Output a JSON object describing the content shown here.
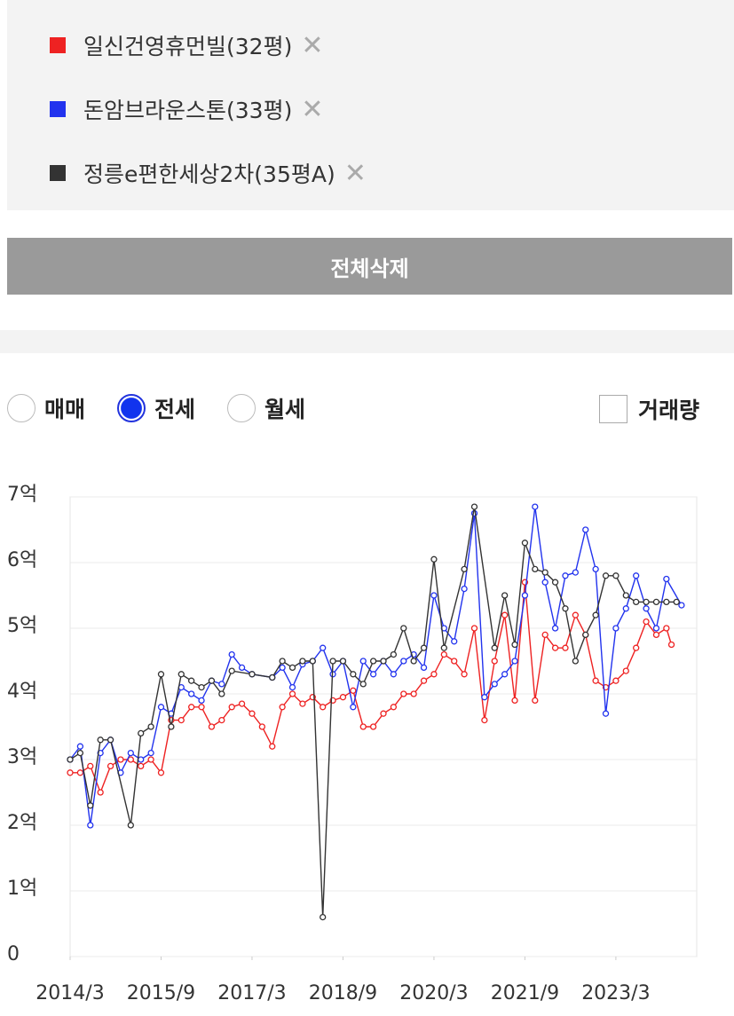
{
  "delete_all": "전체삭제",
  "trade_types": [
    "매매",
    "전세",
    "월세"
  ],
  "volume": "거래량",
  "chart_data": {
    "type": "line",
    "ylim": [
      0,
      7
    ],
    "yticks": [
      0,
      {
        "value": 1,
        "label": "1억"
      },
      {
        "value": 2,
        "label": "2억"
      },
      {
        "value": 3,
        "label": "3억"
      },
      {
        "value": 4,
        "label": "4억"
      },
      {
        "value": 5,
        "label": "5억"
      },
      {
        "value": 6,
        "label": "6억"
      },
      {
        "value": 7,
        "label": "7억"
      }
    ],
    "xlim": [
      "2014/3",
      "2024/7"
    ],
    "xticks": [
      "2014/3",
      "2015/9",
      "2017/3",
      "2018/9",
      "2020/3",
      "2021/9",
      "2023/3"
    ],
    "grid": true,
    "series": [
      {
        "name": "일신건영휴먼빌(32평)",
        "color": "#ee2222",
        "x": [
          "2014/3",
          "2014/5",
          "2014/7",
          "2014/9",
          "2014/11",
          "2015/1",
          "2015/3",
          "2015/5",
          "2015/7",
          "2015/9",
          "2015/11",
          "2016/1",
          "2016/3",
          "2016/5",
          "2016/7",
          "2016/9",
          "2016/11",
          "2017/1",
          "2017/3",
          "2017/5",
          "2017/7",
          "2017/9",
          "2017/11",
          "2018/1",
          "2018/3",
          "2018/5",
          "2018/7",
          "2018/9",
          "2018/11",
          "2019/1",
          "2019/3",
          "2019/5",
          "2019/7",
          "2019/9",
          "2019/11",
          "2020/1",
          "2020/3",
          "2020/5",
          "2020/7",
          "2020/9",
          "2020/11",
          "2021/1",
          "2021/3",
          "2021/5",
          "2021/7",
          "2021/9",
          "2021/11",
          "2022/1",
          "2022/3",
          "2022/5",
          "2022/7",
          "2022/9",
          "2022/11",
          "2023/1",
          "2023/3",
          "2023/5",
          "2023/7",
          "2023/9",
          "2023/11",
          "2024/1",
          "2024/2"
        ],
        "values": [
          2.8,
          2.8,
          2.9,
          2.5,
          2.9,
          3.0,
          3.0,
          2.9,
          3.0,
          2.8,
          3.6,
          3.6,
          3.8,
          3.8,
          3.5,
          3.6,
          3.8,
          3.85,
          3.7,
          3.5,
          3.2,
          3.8,
          4.0,
          3.85,
          3.95,
          3.8,
          3.9,
          3.95,
          4.05,
          3.5,
          3.5,
          3.7,
          3.8,
          4.0,
          4.0,
          4.2,
          4.3,
          4.6,
          4.5,
          4.3,
          5.0,
          3.6,
          4.5,
          5.2,
          3.9,
          5.7,
          3.9,
          4.9,
          4.7,
          4.7,
          5.2,
          4.9,
          4.2,
          4.1,
          4.2,
          4.35,
          4.7,
          5.1,
          4.9,
          5.0,
          4.75
        ]
      },
      {
        "name": "돈암브라운스톤(33평)",
        "color": "#2233ee",
        "x": [
          "2014/3",
          "2014/5",
          "2014/7",
          "2014/9",
          "2014/11",
          "2015/1",
          "2015/3",
          "2015/5",
          "2015/7",
          "2015/9",
          "2015/11",
          "2016/1",
          "2016/3",
          "2016/5",
          "2016/7",
          "2016/9",
          "2016/11",
          "2017/1",
          "2017/3",
          "2017/7",
          "2017/9",
          "2017/11",
          "2018/1",
          "2018/3",
          "2018/5",
          "2018/7",
          "2018/9",
          "2018/11",
          "2019/1",
          "2019/3",
          "2019/5",
          "2019/7",
          "2019/9",
          "2019/11",
          "2020/1",
          "2020/3",
          "2020/5",
          "2020/7",
          "2020/9",
          "2020/11",
          "2021/1",
          "2021/3",
          "2021/5",
          "2021/7",
          "2021/9",
          "2021/11",
          "2022/1",
          "2022/3",
          "2022/5",
          "2022/7",
          "2022/9",
          "2022/11",
          "2023/1",
          "2023/3",
          "2023/5",
          "2023/7",
          "2023/9",
          "2023/11",
          "2024/1",
          "2024/4"
        ],
        "values": [
          3.0,
          3.2,
          2.0,
          3.1,
          3.3,
          2.8,
          3.1,
          3.0,
          3.1,
          3.8,
          3.7,
          4.1,
          4.0,
          3.9,
          4.2,
          4.15,
          4.6,
          4.4,
          4.3,
          4.25,
          4.4,
          4.1,
          4.45,
          4.5,
          4.7,
          4.3,
          4.5,
          3.8,
          4.5,
          4.3,
          4.5,
          4.3,
          4.5,
          4.6,
          4.4,
          5.5,
          5.0,
          4.8,
          5.6,
          6.75,
          3.95,
          4.15,
          4.3,
          4.5,
          5.5,
          6.85,
          5.7,
          5.0,
          5.8,
          5.85,
          6.5,
          5.9,
          3.7,
          5.0,
          5.3,
          5.8,
          5.3,
          5.0,
          5.75,
          5.35
        ]
      },
      {
        "name": "정릉e편한세상2차(35평A)",
        "color": "#333333",
        "x": [
          "2014/3",
          "2014/5",
          "2014/7",
          "2014/9",
          "2014/11",
          "2015/3",
          "2015/5",
          "2015/7",
          "2015/9",
          "2015/11",
          "2016/1",
          "2016/3",
          "2016/5",
          "2016/7",
          "2016/9",
          "2016/11",
          "2017/3",
          "2017/7",
          "2017/9",
          "2017/11",
          "2018/1",
          "2018/3",
          "2018/5",
          "2018/7",
          "2018/9",
          "2018/11",
          "2019/1",
          "2019/3",
          "2019/5",
          "2019/7",
          "2019/9",
          "2019/11",
          "2020/1",
          "2020/3",
          "2020/5",
          "2020/9",
          "2020/11",
          "2021/3",
          "2021/5",
          "2021/7",
          "2021/9",
          "2021/11",
          "2022/1",
          "2022/3",
          "2022/5",
          "2022/7",
          "2022/9",
          "2022/11",
          "2023/1",
          "2023/3",
          "2023/5",
          "2023/7",
          "2023/9",
          "2023/11",
          "2024/1",
          "2024/3"
        ],
        "values": [
          3.0,
          3.1,
          2.3,
          3.3,
          3.3,
          2.0,
          3.4,
          3.5,
          4.3,
          3.5,
          4.3,
          4.2,
          4.1,
          4.2,
          4.0,
          4.35,
          4.3,
          4.25,
          4.5,
          4.4,
          4.5,
          4.5,
          0.6,
          4.5,
          4.5,
          4.3,
          4.15,
          4.5,
          4.5,
          4.6,
          5.0,
          4.5,
          4.7,
          6.05,
          4.7,
          5.9,
          6.85,
          4.7,
          5.5,
          4.75,
          6.3,
          5.9,
          5.85,
          5.7,
          5.3,
          4.5,
          4.9,
          5.2,
          5.8,
          5.8,
          5.5,
          5.4,
          5.4,
          5.4,
          5.4,
          5.4
        ]
      }
    ]
  }
}
